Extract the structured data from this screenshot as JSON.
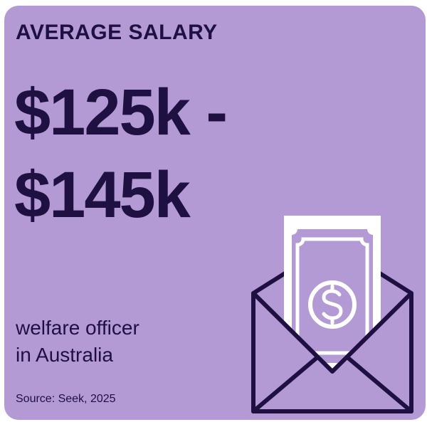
{
  "card": {
    "heading": "AVERAGE SALARY",
    "salary_line1": "$125k -",
    "salary_line2": "$145k",
    "description_line1": "welfare officer",
    "description_line2": "in Australia",
    "source": "Source: Seek, 2025",
    "illustration_icon": "money-envelope-icon"
  },
  "colors": {
    "background": "#b39ad4",
    "text": "#1e1040",
    "icon_fill": "#ffffff"
  }
}
